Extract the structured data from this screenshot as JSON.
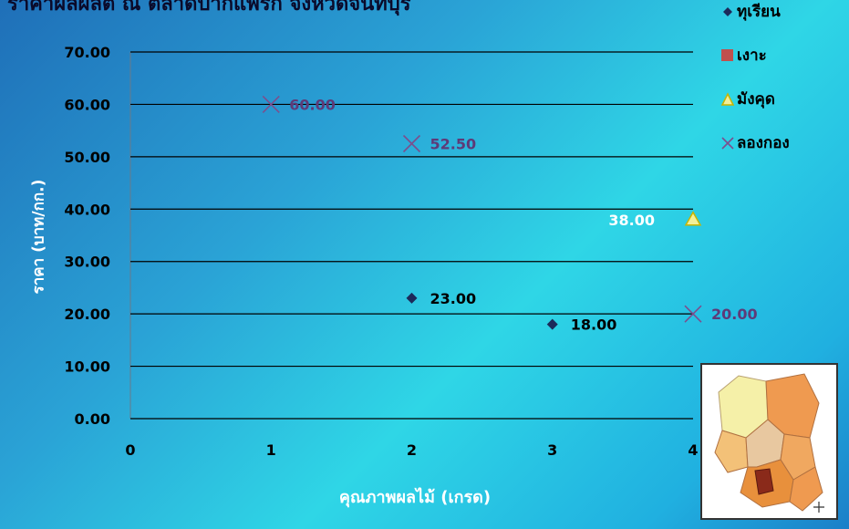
{
  "chart_data": {
    "type": "scatter",
    "title": "ราคาผลผลิต ณ ตลาดปากแพรก จังหวัดจันทบุรี",
    "xlabel": "คุณภาพผลไม้ (เกรด)",
    "ylabel": "ราคา (บาท/กก.)",
    "xlim": [
      0,
      4
    ],
    "ylim": [
      0,
      70
    ],
    "x_ticks": [
      "0",
      "1",
      "2",
      "3",
      "4"
    ],
    "y_ticks": [
      "0.00",
      "10.00",
      "20.00",
      "30.00",
      "40.00",
      "50.00",
      "60.00",
      "70.00"
    ],
    "grid": true,
    "legend_position": "top-right",
    "series": [
      {
        "name": "ทุเรียน",
        "marker": "diamond",
        "color": "#1c2a5a",
        "points": [
          {
            "x": 2,
            "y": 23.0,
            "label": "23.00"
          },
          {
            "x": 3,
            "y": 18.0,
            "label": "18.00"
          }
        ]
      },
      {
        "name": "เงาะ",
        "marker": "square",
        "color": "#c0504d",
        "points": []
      },
      {
        "name": "มังคุด",
        "marker": "triangle",
        "color": "#f2ef9a",
        "points": [
          {
            "x": 4,
            "y": 38.0,
            "label": "38.00"
          }
        ]
      },
      {
        "name": "ลองกอง",
        "marker": "x",
        "color": "#7b4f8e",
        "points": [
          {
            "x": 1,
            "y": 60.0,
            "label": "60.00"
          },
          {
            "x": 2,
            "y": 52.5,
            "label": "52.50"
          },
          {
            "x": 4,
            "y": 20.0,
            "label": "20.00"
          }
        ]
      }
    ]
  },
  "colors": {
    "durian_label": "#000000",
    "mangosteen_label": "#ffffff",
    "longkong_label": "#5e3a78",
    "gridline": "#000000",
    "axis_tick_text": "#000000"
  }
}
